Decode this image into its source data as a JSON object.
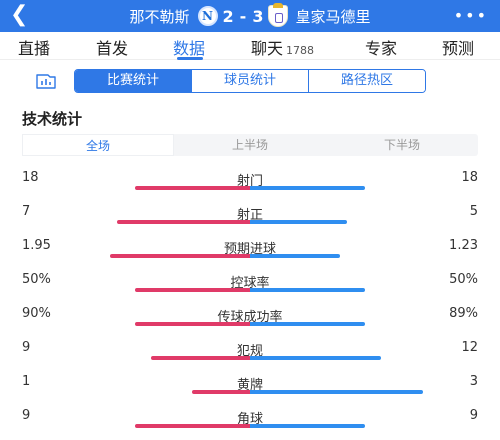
{
  "header": {
    "back_icon": "chevron-left-icon",
    "home_team": "那不勒斯",
    "home_score": "2",
    "score_separator": "-",
    "away_score": "3",
    "away_team": "皇家马德里",
    "more_icon": "more-dots-icon",
    "colors": {
      "bar": "#2f78e6"
    }
  },
  "tabs": [
    {
      "label": "直播"
    },
    {
      "label": "首发"
    },
    {
      "label": "数据",
      "active": true
    },
    {
      "label": "聊天",
      "count": "1788"
    },
    {
      "label": "专家"
    },
    {
      "label": "预测"
    }
  ],
  "subnav": {
    "chart_icon": "bar-chart-icon",
    "segments": [
      {
        "label": "比赛统计",
        "active": true
      },
      {
        "label": "球员统计"
      },
      {
        "label": "路径热区"
      }
    ]
  },
  "section_title": "技术统计",
  "periods": [
    {
      "label": "全场",
      "active": true
    },
    {
      "label": "上半场"
    },
    {
      "label": "下半场"
    }
  ],
  "stats": [
    {
      "name": "射门",
      "home": "18",
      "away": "18",
      "home_ratio": 0.5,
      "away_ratio": 0.5
    },
    {
      "name": "射正",
      "home": "7",
      "away": "5",
      "home_ratio": 0.58,
      "away_ratio": 0.42
    },
    {
      "name": "预期进球",
      "home": "1.95",
      "away": "1.23",
      "home_ratio": 0.61,
      "away_ratio": 0.39
    },
    {
      "name": "控球率",
      "home": "50%",
      "away": "50%",
      "home_ratio": 0.5,
      "away_ratio": 0.5
    },
    {
      "name": "传球成功率",
      "home": "90%",
      "away": "89%",
      "home_ratio": 0.5,
      "away_ratio": 0.5
    },
    {
      "name": "犯规",
      "home": "9",
      "away": "12",
      "home_ratio": 0.43,
      "away_ratio": 0.57
    },
    {
      "name": "黄牌",
      "home": "1",
      "away": "3",
      "home_ratio": 0.25,
      "away_ratio": 0.75
    },
    {
      "name": "角球",
      "home": "9",
      "away": "9",
      "home_ratio": 0.5,
      "away_ratio": 0.5
    }
  ],
  "colors": {
    "home_bar": "#e03a68",
    "away_bar": "#2f8ef0",
    "accent": "#2f78e6"
  }
}
